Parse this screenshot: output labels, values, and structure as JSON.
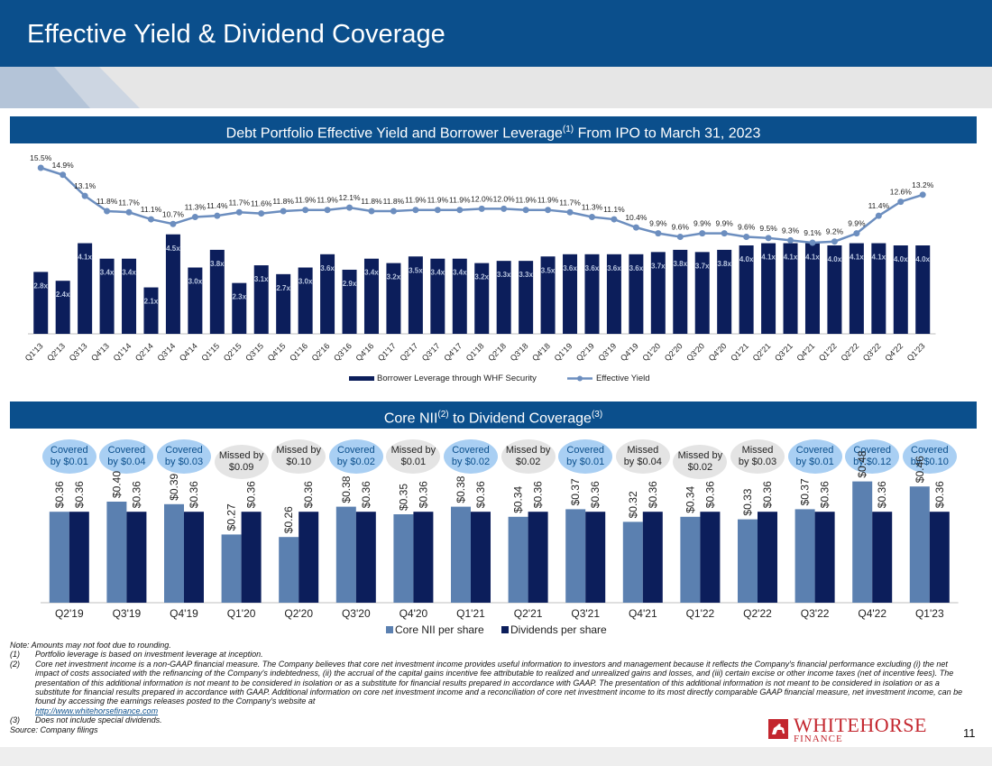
{
  "header": {
    "title": "Effective Yield & Dividend Coverage"
  },
  "section1": {
    "title": "Debt Portfolio Effective Yield and Borrower Leverage",
    "sup": "(1)",
    "title_suffix": "From IPO to March 31, 2023"
  },
  "section2": {
    "title": "Core NII",
    "sup1": "(2)",
    "mid": "to Dividend Coverage",
    "sup2": "(3)"
  },
  "colors": {
    "navy": "#0b4f8c",
    "dark_navy": "#0c1e5b",
    "steel": "#5b80b0",
    "yield_line": "#6c8ebf",
    "covered_bg": "#a9cff3",
    "missed_bg": "#e4e4e4",
    "brand_red": "#c3262e"
  },
  "chart_data": [
    {
      "type": "bar+line",
      "title": "Debt Portfolio Effective Yield and Borrower Leverage(1) From IPO to March 31, 2023",
      "categories": [
        "Q1'13",
        "Q2'13",
        "Q3'13",
        "Q4'13",
        "Q1'14",
        "Q2'14",
        "Q3'14",
        "Q4'14",
        "Q1'15",
        "Q2'15",
        "Q3'15",
        "Q4'15",
        "Q1'16",
        "Q2'16",
        "Q3'16",
        "Q4'16",
        "Q1'17",
        "Q2'17",
        "Q3'17",
        "Q4'17",
        "Q1'18",
        "Q2'18",
        "Q3'18",
        "Q4'18",
        "Q1'19",
        "Q2'19",
        "Q3'19",
        "Q4'19",
        "Q1'20",
        "Q2'20",
        "Q3'20",
        "Q4'20",
        "Q1'21",
        "Q2'21",
        "Q3'21",
        "Q4'21",
        "Q1'22",
        "Q2'22",
        "Q3'22",
        "Q4'22",
        "Q1'23"
      ],
      "series": [
        {
          "name": "Borrower Leverage through WHF Security",
          "kind": "bar",
          "values": [
            2.8,
            2.4,
            4.1,
            3.4,
            3.4,
            2.1,
            4.5,
            3.0,
            3.8,
            2.3,
            3.1,
            2.7,
            3.0,
            3.6,
            2.9,
            3.4,
            3.2,
            3.5,
            3.4,
            3.4,
            3.2,
            3.3,
            3.3,
            3.5,
            3.6,
            3.6,
            3.6,
            3.6,
            3.7,
            3.8,
            3.7,
            3.8,
            4.0,
            4.1,
            4.1,
            4.1,
            4.0,
            4.1,
            4.1,
            4.0,
            4.0
          ],
          "labels": [
            "2.8x",
            "2.4x",
            "4.1x",
            "3.4x",
            "3.4x",
            "2.1x",
            "4.5x",
            "3.0x",
            "3.8x",
            "2.3x",
            "3.1x",
            "2.7x",
            "3.0x",
            "3.6x",
            "2.9x",
            "3.4x",
            "3.2x",
            "3.5x",
            "3.4x",
            "3.4x",
            "3.2x",
            "3.3x",
            "3.3x",
            "3.5x",
            "3.6x",
            "3.6x",
            "3.6x",
            "3.6x",
            "3.7x",
            "3.8x",
            "3.7x",
            "3.8x",
            "4.0x",
            "4.1x",
            "4.1x",
            "4.1x",
            "4.0x",
            "4.1x",
            "4.1x",
            "4.0x",
            "4.0x"
          ]
        },
        {
          "name": "Effective Yield",
          "kind": "line",
          "values": [
            15.5,
            14.9,
            13.1,
            11.8,
            11.7,
            11.1,
            10.7,
            11.3,
            11.4,
            11.7,
            11.6,
            11.8,
            11.9,
            11.9,
            12.1,
            11.8,
            11.8,
            11.9,
            11.9,
            11.9,
            12.0,
            12.0,
            11.9,
            11.9,
            11.7,
            11.3,
            11.1,
            10.4,
            9.9,
            9.6,
            9.9,
            9.9,
            9.6,
            9.5,
            9.3,
            9.1,
            9.2,
            9.9,
            11.4,
            12.6,
            13.2
          ],
          "labels": [
            "15.5%",
            "14.9%",
            "13.1%",
            "11.8%",
            "11.7%",
            "11.1%",
            "10.7%",
            "11.3%",
            "11.4%",
            "11.7%",
            "11.6%",
            "11.8%",
            "11.9%",
            "11.9%",
            "12.1%",
            "11.8%",
            "11.8%",
            "11.9%",
            "11.9%",
            "11.9%",
            "12.0%",
            "12.0%",
            "11.9%",
            "11.9%",
            "11.7%",
            "11.3%",
            "11.1%",
            "10.4%",
            "9.9%",
            "9.6%",
            "9.9%",
            "9.9%",
            "9.6%",
            "9.5%",
            "9.3%",
            "9.1%",
            "9.2%",
            "9.9%",
            "11.4%",
            "12.6%",
            "13.2%"
          ]
        }
      ],
      "legend": "bottom-center",
      "grid": false
    },
    {
      "type": "bar",
      "title": "Core NII(2) to Dividend Coverage(3)",
      "categories": [
        "Q2'19",
        "Q3'19",
        "Q4'19",
        "Q1'20",
        "Q2'20",
        "Q3'20",
        "Q4'20",
        "Q1'21",
        "Q2'21",
        "Q3'21",
        "Q4'21",
        "Q1'22",
        "Q2'22",
        "Q3'22",
        "Q4'22",
        "Q1'23"
      ],
      "series": [
        {
          "name": "Core NII per share",
          "values": [
            0.36,
            0.4,
            0.39,
            0.27,
            0.26,
            0.38,
            0.35,
            0.38,
            0.34,
            0.37,
            0.32,
            0.34,
            0.33,
            0.37,
            0.48,
            0.46
          ],
          "labels": [
            "$0.36",
            "$0.40",
            "$0.39",
            "$0.27",
            "$0.26",
            "$0.38",
            "$0.35",
            "$0.38",
            "$0.34",
            "$0.37",
            "$0.32",
            "$0.34",
            "$0.33",
            "$0.37",
            "$0.48",
            "$0.46"
          ]
        },
        {
          "name": "Dividends per share",
          "values": [
            0.36,
            0.36,
            0.36,
            0.36,
            0.36,
            0.36,
            0.36,
            0.36,
            0.36,
            0.36,
            0.36,
            0.36,
            0.36,
            0.36,
            0.36,
            0.36
          ],
          "labels": [
            "$0.36",
            "$0.36",
            "$0.36",
            "$0.36",
            "$0.36",
            "$0.36",
            "$0.36",
            "$0.36",
            "$0.36",
            "$0.36",
            "$0.36",
            "$0.36",
            "$0.36",
            "$0.36",
            "$0.36",
            "$0.36"
          ]
        }
      ],
      "coverage": [
        {
          "status": "covered",
          "line1": "Covered",
          "line2": "by $0.01"
        },
        {
          "status": "covered",
          "line1": "Covered",
          "line2": "by $0.04"
        },
        {
          "status": "covered",
          "line1": "Covered",
          "line2": "by $0.03"
        },
        {
          "status": "missed",
          "line1": "Missed by",
          "line2": "$0.09"
        },
        {
          "status": "missed",
          "line1": "Missed by",
          "line2": "$0.10"
        },
        {
          "status": "covered",
          "line1": "Covered",
          "line2": "by $0.02"
        },
        {
          "status": "missed",
          "line1": "Missed by",
          "line2": "$0.01"
        },
        {
          "status": "covered",
          "line1": "Covered",
          "line2": "by $0.02"
        },
        {
          "status": "missed",
          "line1": "Missed by",
          "line2": "$0.02"
        },
        {
          "status": "covered",
          "line1": "Covered",
          "line2": "by $0.01"
        },
        {
          "status": "missed",
          "line1": "Missed",
          "line2": "by $0.04"
        },
        {
          "status": "missed",
          "line1": "Missed by",
          "line2": "$0.02"
        },
        {
          "status": "missed",
          "line1": "Missed",
          "line2": "by $0.03"
        },
        {
          "status": "covered",
          "line1": "Covered",
          "line2": "by $0.01"
        },
        {
          "status": "covered",
          "line1": "Covered",
          "line2": "by $0.12"
        },
        {
          "status": "covered",
          "line1": "Covered",
          "line2": "by $0.10"
        }
      ],
      "legend": "bottom-center",
      "grid": false
    }
  ],
  "notes": {
    "note": "Note: Amounts may not foot due to rounding.",
    "items": [
      {
        "num": "(1)",
        "text": "Portfolio leverage is based on investment leverage at inception."
      },
      {
        "num": "(2)",
        "text": "Core net investment income is a non-GAAP financial measure. The Company believes that core net investment income provides useful information to investors and management because it reflects the Company's financial performance excluding (i) the net impact of costs associated with the refinancing of the Company's indebtedness, (ii) the accrual of the capital gains incentive fee attributable to realized and unrealized gains and losses, and (iii) certain excise or other income taxes (net of incentive fees). The presentation of this additional information is not meant to be considered in isolation or as a substitute for financial results prepared in accordance with GAAP. The presentation of this additional information is not meant to be considered in isolation or as a substitute for financial results prepared in accordance with GAAP. Additional information on core net investment income and a reconciliation of core net investment income to its most directly comparable GAAP financial measure, net investment income, can be found by accessing the earnings releases posted to the Company's website at",
        "link": "http://www.whitehorsefinance.com"
      },
      {
        "num": "(3)",
        "text": "Does not include special dividends."
      }
    ],
    "source": "Source: Company filings"
  },
  "brand": {
    "name": "WHITEHORSE",
    "sub": "FINANCE",
    "icon": "horse-logo-icon"
  },
  "page_number": "11"
}
